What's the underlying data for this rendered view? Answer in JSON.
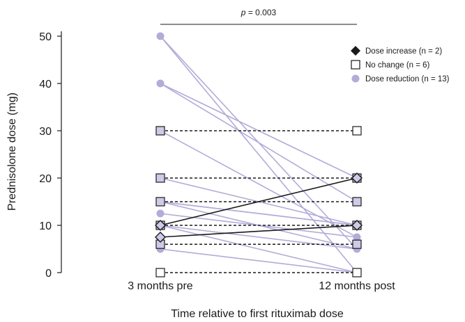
{
  "chart_data": {
    "type": "line",
    "annotation": {
      "prefix": "p",
      "text": " = 0.003"
    },
    "xlabel": "Time relative to first rituximab dose",
    "ylabel": "Prednisolone dose (mg)",
    "categories": [
      "3 months pre",
      "12 months post"
    ],
    "ylim": [
      0,
      50
    ],
    "yticks": [
      0,
      10,
      20,
      30,
      40,
      50
    ],
    "legend_position": "top-right",
    "colors": {
      "increase": "#1a1a1a",
      "reduction": "#b2acd8",
      "marker_fill_reduction": "#b2acd8",
      "marker_fill_nochange": "#ffffff"
    },
    "legend": [
      {
        "key": "increase",
        "label": "Dose increase (n = 2)"
      },
      {
        "key": "nochange",
        "label": "No change (n = 6)"
      },
      {
        "key": "reduction",
        "label": "Dose reduction (n = 13)"
      }
    ],
    "series": [
      {
        "group": "nochange",
        "values": [
          30,
          30
        ]
      },
      {
        "group": "nochange",
        "values": [
          20,
          20
        ]
      },
      {
        "group": "nochange",
        "values": [
          15,
          15
        ]
      },
      {
        "group": "nochange",
        "values": [
          10,
          10
        ]
      },
      {
        "group": "nochange",
        "values": [
          6,
          6
        ]
      },
      {
        "group": "nochange",
        "values": [
          0,
          0
        ]
      },
      {
        "group": "reduction",
        "values": [
          50,
          5
        ]
      },
      {
        "group": "reduction",
        "values": [
          50,
          0
        ]
      },
      {
        "group": "reduction",
        "values": [
          40,
          20
        ]
      },
      {
        "group": "reduction",
        "values": [
          40,
          15
        ]
      },
      {
        "group": "reduction",
        "values": [
          30,
          7.5
        ]
      },
      {
        "group": "reduction",
        "values": [
          20,
          10
        ]
      },
      {
        "group": "reduction",
        "values": [
          15,
          10
        ]
      },
      {
        "group": "reduction",
        "values": [
          15,
          5
        ]
      },
      {
        "group": "reduction",
        "values": [
          12.5,
          7.5
        ]
      },
      {
        "group": "reduction",
        "values": [
          10,
          5
        ]
      },
      {
        "group": "reduction",
        "values": [
          10,
          0
        ]
      },
      {
        "group": "reduction",
        "values": [
          5,
          0
        ]
      },
      {
        "group": "reduction",
        "values": [
          15,
          10
        ]
      },
      {
        "group": "increase",
        "values": [
          10,
          20
        ]
      },
      {
        "group": "increase",
        "values": [
          7.5,
          10
        ]
      }
    ]
  }
}
